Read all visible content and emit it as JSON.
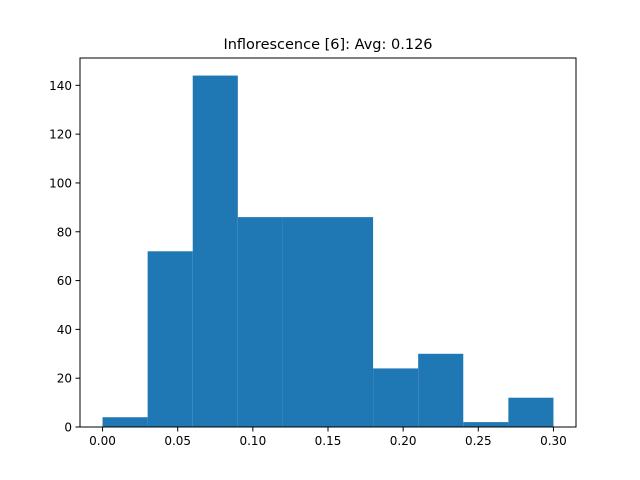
{
  "chart_data": {
    "type": "bar",
    "title": "Inflorescence [6]: Avg: 0.126",
    "xlabel": "",
    "ylabel": "",
    "xlim": [
      -0.015,
      0.315
    ],
    "ylim": [
      0,
      151.2
    ],
    "bins": [
      {
        "x0": 0.0,
        "x1": 0.03,
        "value": 4
      },
      {
        "x0": 0.03,
        "x1": 0.06,
        "value": 72
      },
      {
        "x0": 0.06,
        "x1": 0.09,
        "value": 144
      },
      {
        "x0": 0.09,
        "x1": 0.12,
        "value": 86
      },
      {
        "x0": 0.12,
        "x1": 0.15,
        "value": 86
      },
      {
        "x0": 0.15,
        "x1": 0.18,
        "value": 86
      },
      {
        "x0": 0.18,
        "x1": 0.21,
        "value": 24
      },
      {
        "x0": 0.21,
        "x1": 0.24,
        "value": 30
      },
      {
        "x0": 0.24,
        "x1": 0.27,
        "value": 2
      },
      {
        "x0": 0.27,
        "x1": 0.3,
        "value": 12
      }
    ],
    "xticks": [
      {
        "value": 0.0,
        "label": "0.00"
      },
      {
        "value": 0.05,
        "label": "0.05"
      },
      {
        "value": 0.1,
        "label": "0.10"
      },
      {
        "value": 0.15,
        "label": "0.15"
      },
      {
        "value": 0.2,
        "label": "0.20"
      },
      {
        "value": 0.25,
        "label": "0.25"
      },
      {
        "value": 0.3,
        "label": "0.30"
      }
    ],
    "yticks": [
      {
        "value": 0,
        "label": "0"
      },
      {
        "value": 20,
        "label": "20"
      },
      {
        "value": 40,
        "label": "40"
      },
      {
        "value": 60,
        "label": "60"
      },
      {
        "value": 80,
        "label": "80"
      },
      {
        "value": 100,
        "label": "100"
      },
      {
        "value": 120,
        "label": "120"
      },
      {
        "value": 140,
        "label": "140"
      }
    ],
    "bar_color": "#1f77b4",
    "grid": false,
    "legend": "none"
  }
}
